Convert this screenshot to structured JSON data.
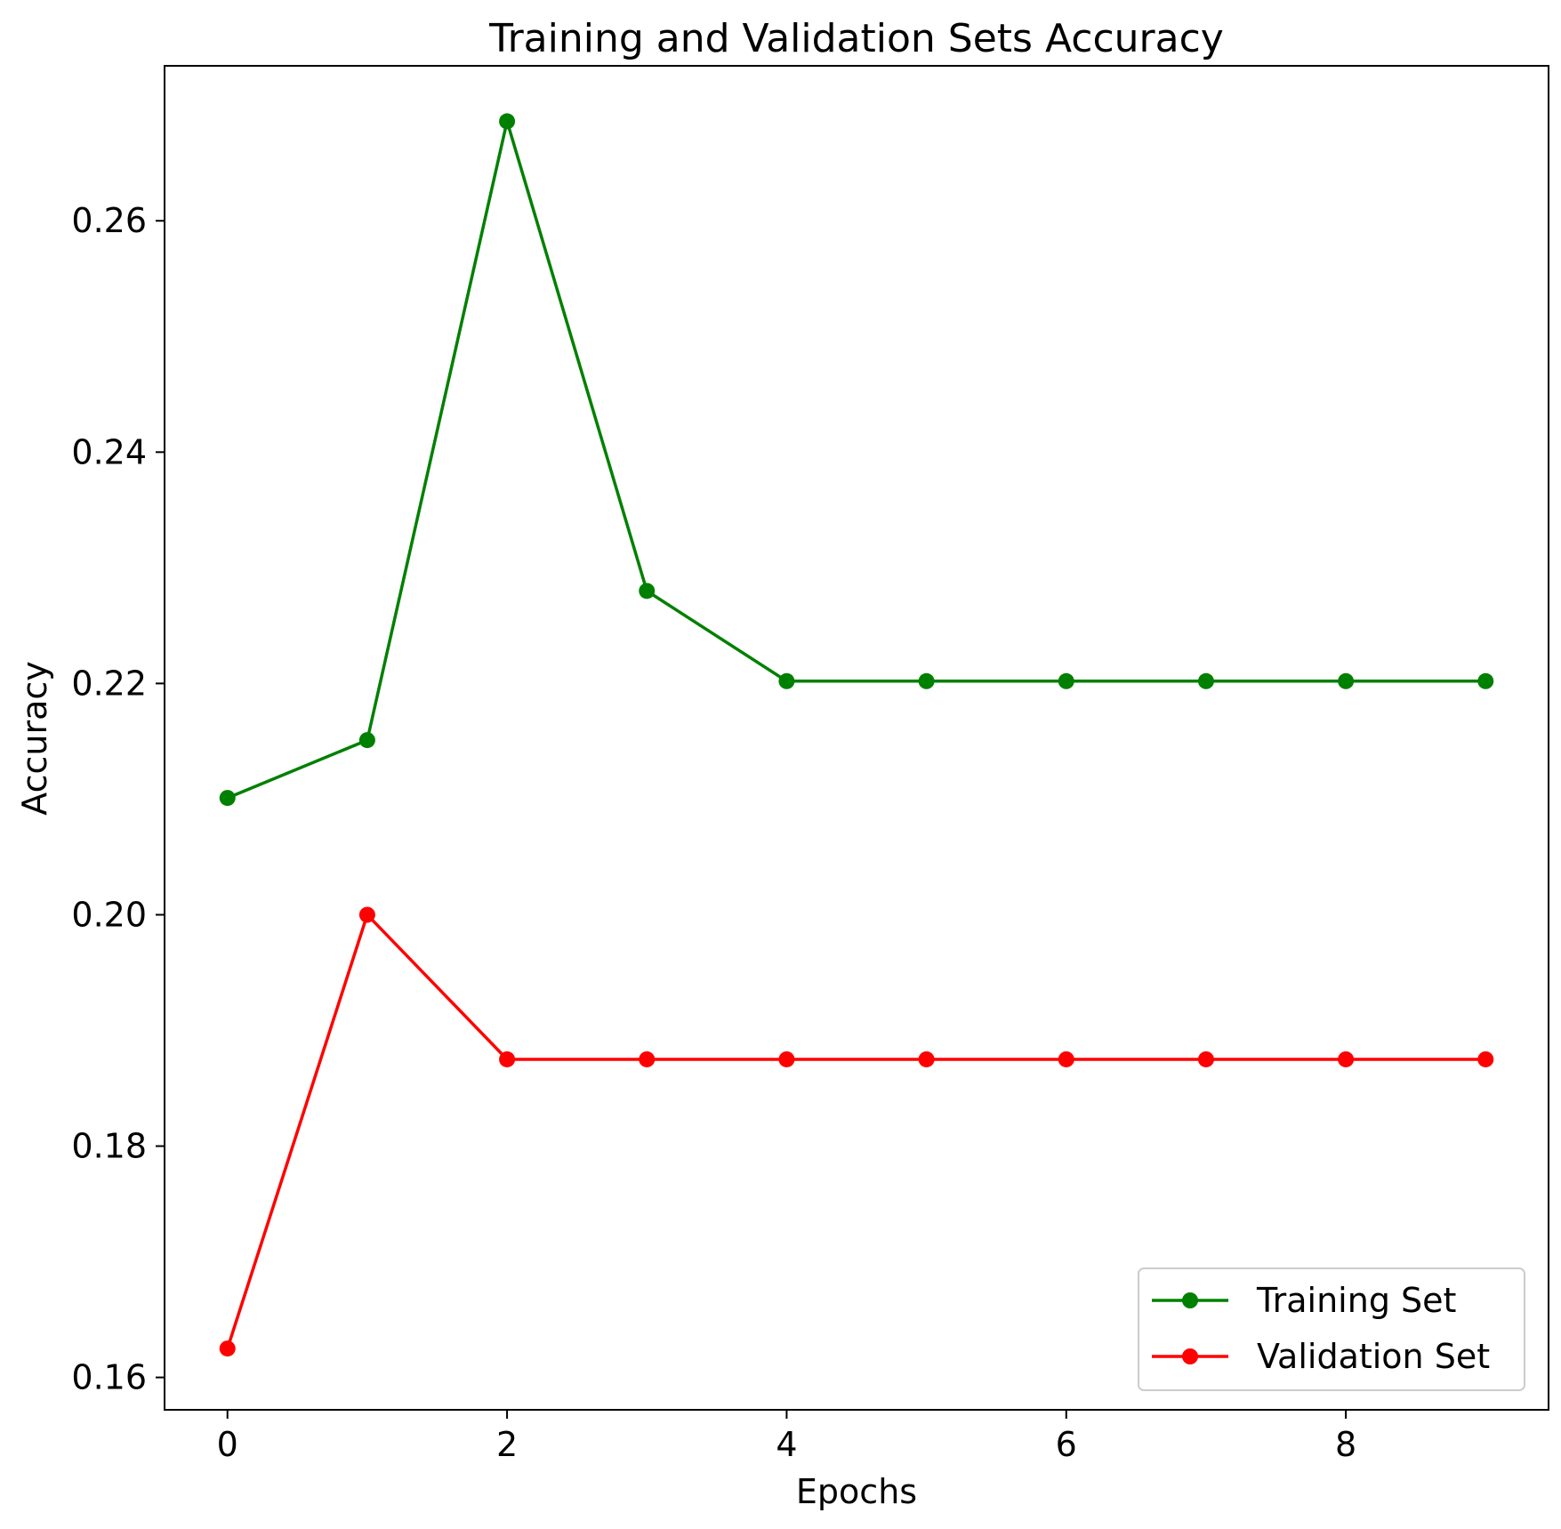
{
  "chart_data": {
    "type": "line",
    "title": "Training and Validation Sets Accuracy",
    "xlabel": "Epochs",
    "ylabel": "Accuracy",
    "x": [
      0,
      1,
      2,
      3,
      4,
      5,
      6,
      7,
      8,
      9
    ],
    "xlim": [
      -0.45,
      9.45
    ],
    "ylim": [
      0.1572,
      0.2734
    ],
    "xticks": [
      0,
      2,
      4,
      6,
      8
    ],
    "yticks": [
      0.16,
      0.18,
      0.2,
      0.22,
      0.24,
      0.26
    ],
    "xtick_labels": [
      "0",
      "2",
      "4",
      "6",
      "8"
    ],
    "ytick_labels": [
      "0.16",
      "0.18",
      "0.20",
      "0.22",
      "0.24",
      "0.26"
    ],
    "grid": false,
    "legend_position": "lower-right",
    "series": [
      {
        "name": "Training Set",
        "color": "#008000",
        "marker": "circle",
        "values": [
          0.2101,
          0.2151,
          0.2686,
          0.228,
          0.2202,
          0.2202,
          0.2202,
          0.2202,
          0.2202,
          0.2202
        ]
      },
      {
        "name": "Validation Set",
        "color": "#ff0000",
        "marker": "circle",
        "values": [
          0.1625,
          0.2,
          0.1875,
          0.1875,
          0.1875,
          0.1875,
          0.1875,
          0.1875,
          0.1875,
          0.1875
        ]
      }
    ]
  }
}
